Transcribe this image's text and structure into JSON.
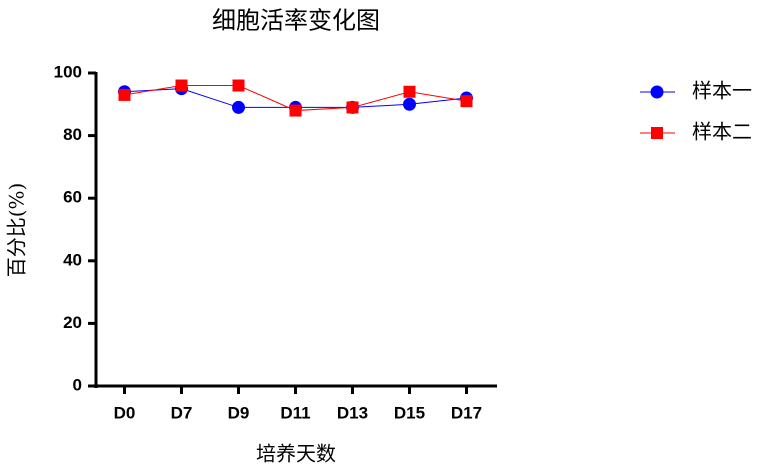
{
  "chart_data": {
    "type": "line",
    "title": "细胞活率变化图",
    "x_label": "培养天数",
    "y_label": "百分比(%)",
    "categories": [
      "D0",
      "D7",
      "D9",
      "D11",
      "D13",
      "D15",
      "D17"
    ],
    "series": [
      {
        "name": "样本一",
        "color": "#0000ff",
        "marker": "circle",
        "values": [
          94,
          95,
          89,
          89,
          89,
          90,
          92
        ]
      },
      {
        "name": "样本二",
        "color": "#ff0000",
        "marker": "square",
        "values": [
          93,
          96,
          96,
          88,
          89,
          94,
          91
        ]
      }
    ],
    "ylim": [
      0,
      100
    ],
    "yticks": [
      0,
      20,
      40,
      60,
      80,
      100
    ],
    "legend": "right"
  }
}
